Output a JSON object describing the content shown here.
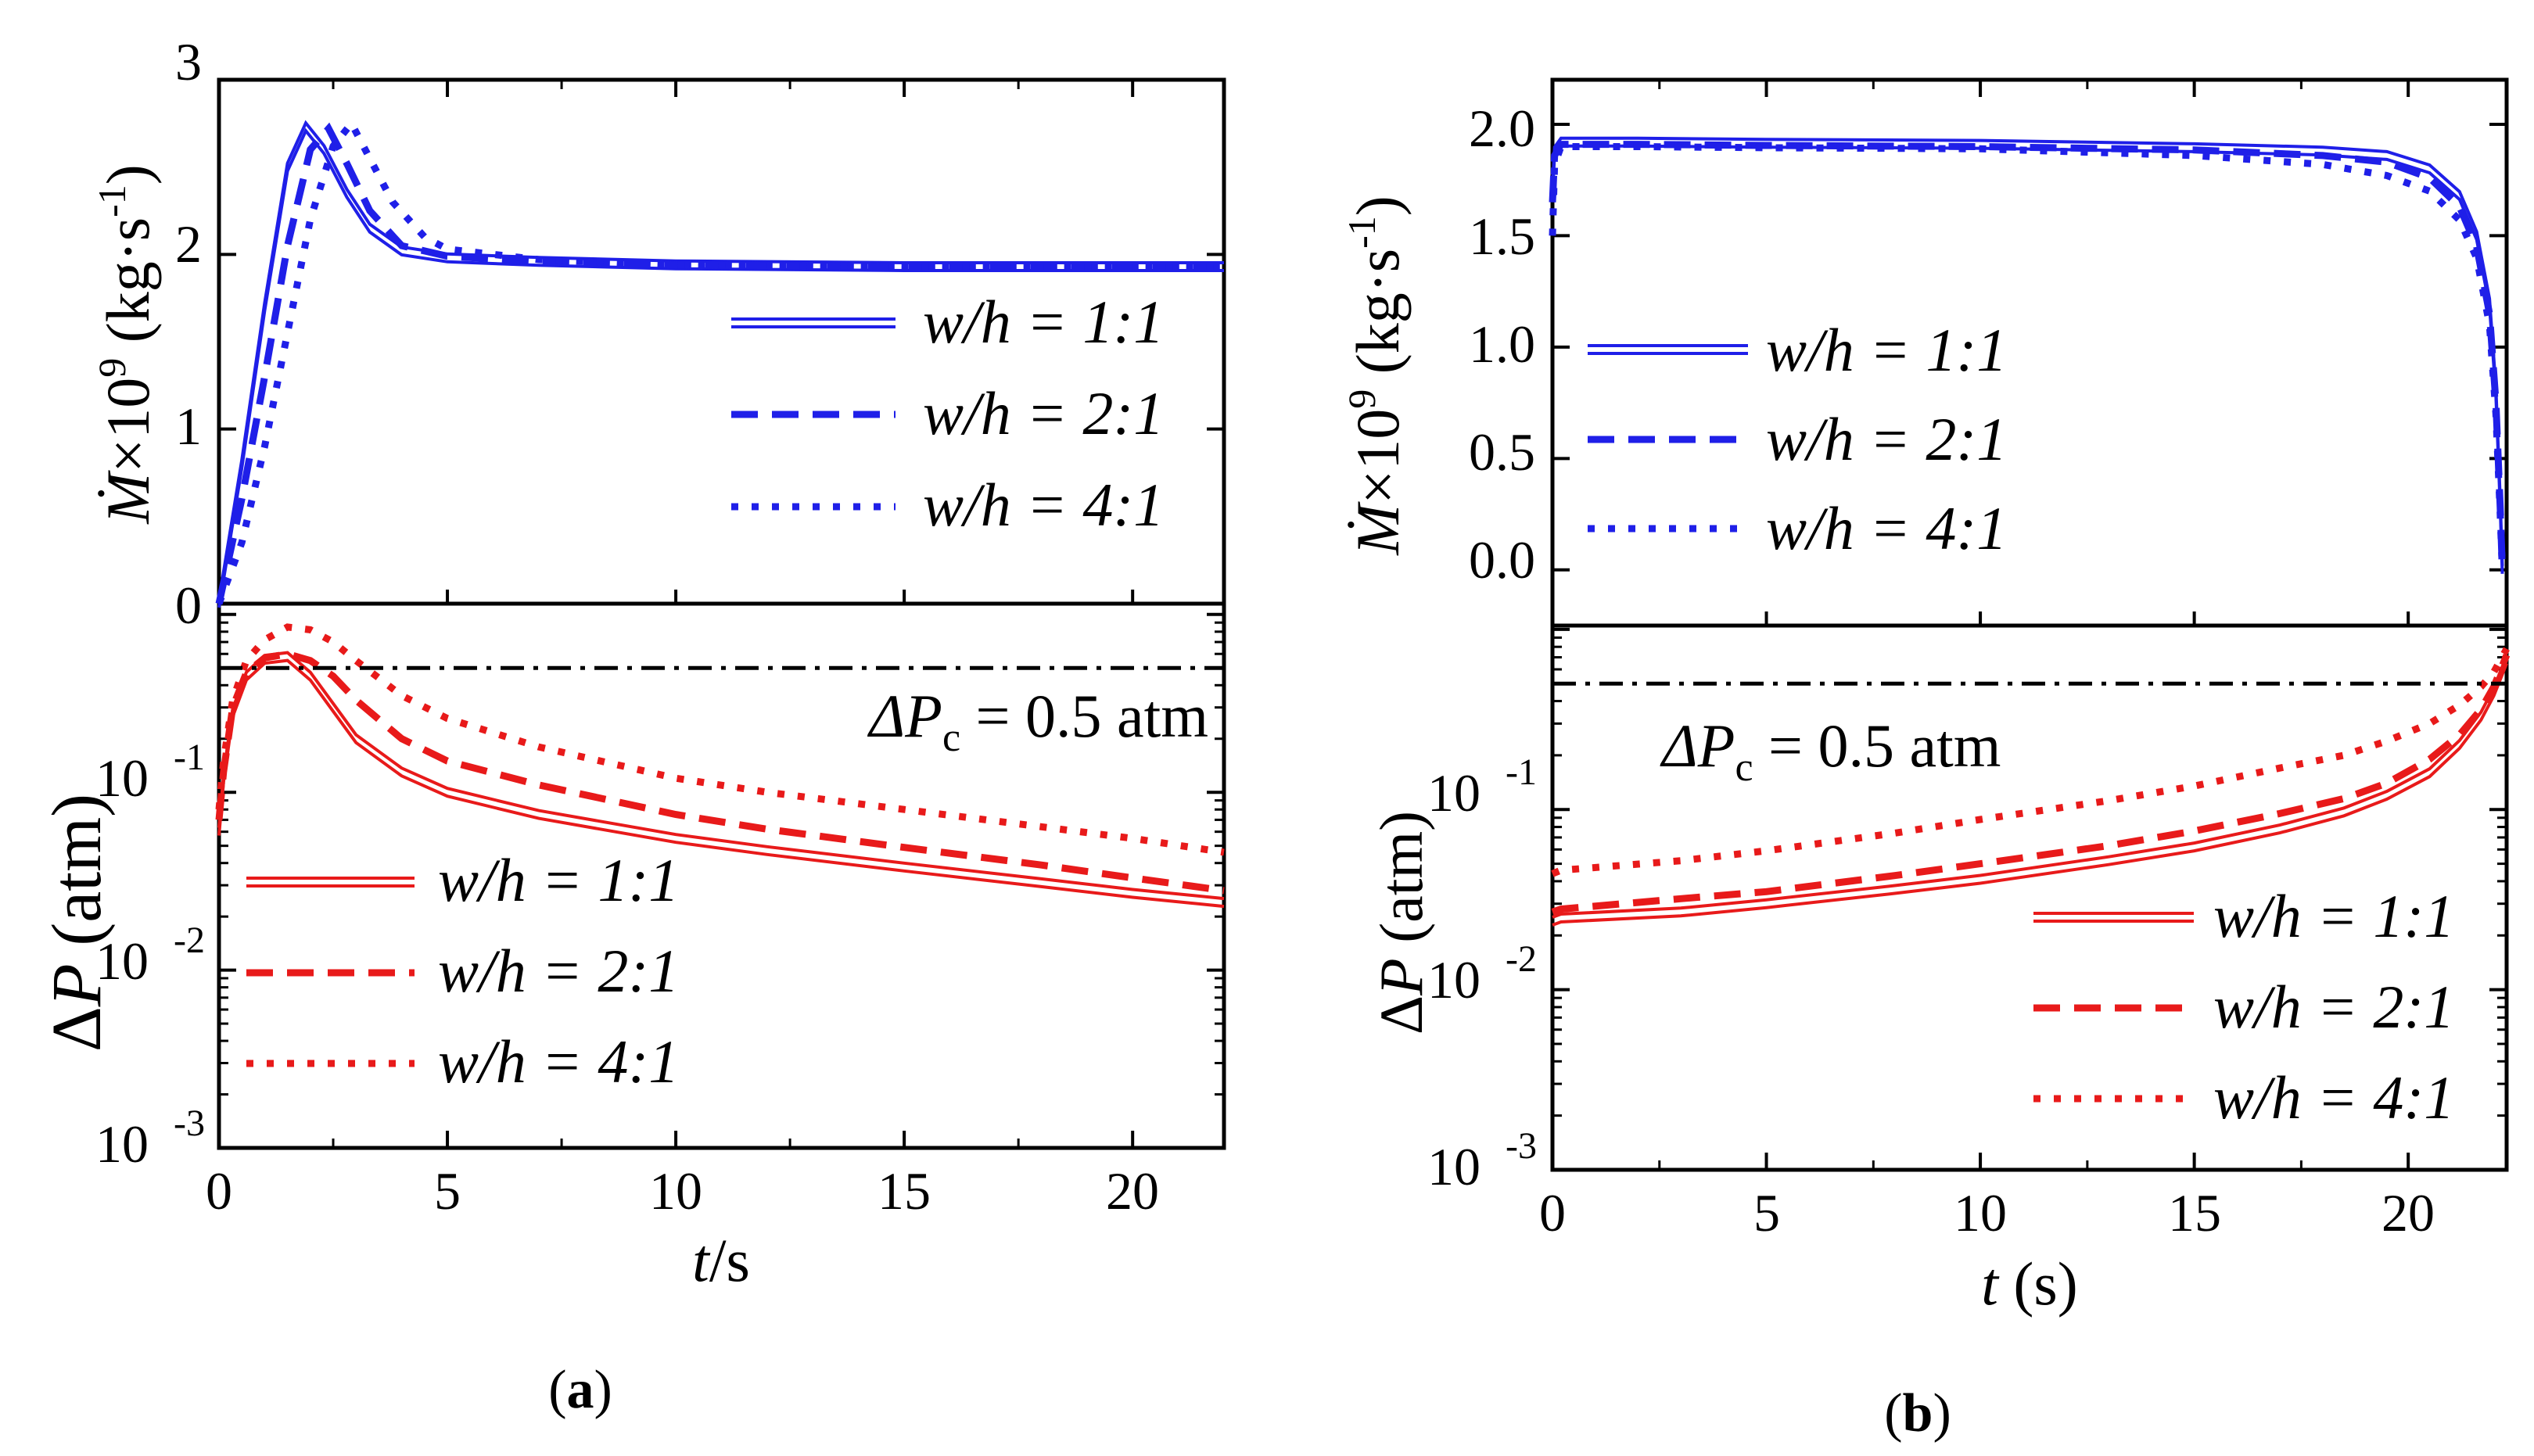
{
  "colors": {
    "blue": "#1f1fe8",
    "red": "#e81a1a",
    "threshold": "#000000",
    "axis": "#000000"
  },
  "chart_data": [
    {
      "id": "a",
      "caption": "(a)",
      "caption_letter": "a",
      "type": "line",
      "xlim": [
        0,
        22
      ],
      "x_ticks": [
        "0",
        "5",
        "10",
        "15",
        "20"
      ],
      "x_tick_values": [
        0,
        5,
        10,
        15,
        20
      ],
      "xlabel": "t/s",
      "xlabel_parts": {
        "var": "t",
        "rest": "/s"
      },
      "top": {
        "ylabel": "Ṁ×10⁹ (kg·s⁻¹)",
        "ylabel_parts": {
          "var": "Ṁ",
          "times": "×10",
          "exp": "9",
          "unit": " (kg·s",
          "unit_exp": "-1",
          "close": ")"
        },
        "ylim": [
          0,
          3
        ],
        "y_ticks": [
          "0",
          "1",
          "2",
          "3"
        ],
        "y_tick_values": [
          0,
          1,
          2,
          3
        ],
        "legend": [
          "w/h = 1:1",
          "w/h = 2:1",
          "w/h = 4:1"
        ],
        "series": [
          {
            "name": "w/h = 1:1",
            "style": "double",
            "x": [
              0,
              0.5,
              1,
              1.5,
              1.9,
              2.3,
              2.8,
              3.3,
              4,
              5,
              7,
              10,
              15,
              22
            ],
            "y": [
              0,
              0.8,
              1.7,
              2.5,
              2.73,
              2.6,
              2.35,
              2.15,
              2.02,
              1.98,
              1.96,
              1.94,
              1.93,
              1.93
            ]
          },
          {
            "name": "w/h = 2:1",
            "style": "dashed",
            "x": [
              0,
              0.5,
              1,
              1.5,
              2,
              2.4,
              2.8,
              3.3,
              4,
              5,
              7,
              10,
              15,
              22
            ],
            "y": [
              0,
              0.6,
              1.3,
              2.05,
              2.6,
              2.72,
              2.52,
              2.25,
              2.05,
              1.99,
              1.96,
              1.94,
              1.93,
              1.93
            ]
          },
          {
            "name": "w/h = 4:1",
            "style": "dotted",
            "x": [
              0,
              0.5,
              1,
              1.5,
              2,
              2.5,
              2.9,
              3.3,
              3.8,
              4.5,
              5,
              7,
              10,
              15,
              22
            ],
            "y": [
              0,
              0.35,
              0.9,
              1.55,
              2.2,
              2.62,
              2.75,
              2.55,
              2.3,
              2.1,
              2.03,
              1.97,
              1.94,
              1.93,
              1.93
            ]
          }
        ]
      },
      "bottom": {
        "ylabel": "ΔP (atm)",
        "ylabel_parts": {
          "delta": "Δ",
          "var": "P",
          "unit": " (atm)"
        },
        "yscale": "log",
        "ylim": [
          0.001,
          1.15
        ],
        "y_ticks": [
          "10",
          "10",
          "10"
        ],
        "y_tick_exps": [
          "-3",
          "-2",
          "-1"
        ],
        "y_tick_values": [
          0.001,
          0.01,
          0.1
        ],
        "threshold": {
          "value": 0.5,
          "label": "ΔPc = 0.5 atm",
          "label_parts": {
            "delta": "Δ",
            "var": "P",
            "sub": "c",
            "rest": " = 0.5 atm"
          }
        },
        "legend": [
          "w/h = 1:1",
          "w/h = 2:1",
          "w/h = 4:1"
        ],
        "series": [
          {
            "name": "w/h = 1:1",
            "style": "double",
            "x": [
              0,
              0.1,
              0.3,
              0.6,
              1,
              1.5,
              2,
              2.5,
              3,
              4,
              5,
              7,
              10,
              12,
              15,
              18,
              20,
              22
            ],
            "y": [
              0.06,
              0.12,
              0.28,
              0.45,
              0.56,
              0.58,
              0.45,
              0.3,
              0.2,
              0.13,
              0.1,
              0.075,
              0.055,
              0.047,
              0.038,
              0.031,
              0.027,
              0.024
            ]
          },
          {
            "name": "w/h = 2:1",
            "style": "dashed",
            "x": [
              0,
              0.1,
              0.3,
              0.6,
              1,
              1.5,
              2,
              2.5,
              3,
              4,
              5,
              7,
              10,
              12,
              15,
              18,
              20,
              22
            ],
            "y": [
              0.07,
              0.13,
              0.3,
              0.47,
              0.57,
              0.6,
              0.55,
              0.45,
              0.33,
              0.2,
              0.15,
              0.11,
              0.075,
              0.062,
              0.049,
              0.039,
              0.033,
              0.028
            ]
          },
          {
            "name": "w/h = 4:1",
            "style": "dotted",
            "x": [
              0,
              0.1,
              0.3,
              0.6,
              1,
              1.5,
              2,
              2.5,
              3,
              4,
              5,
              7,
              10,
              12,
              15,
              18,
              20,
              22
            ],
            "y": [
              0.08,
              0.15,
              0.33,
              0.55,
              0.72,
              0.85,
              0.82,
              0.7,
              0.55,
              0.35,
              0.26,
              0.18,
              0.12,
              0.1,
              0.08,
              0.064,
              0.055,
              0.046
            ]
          }
        ]
      }
    },
    {
      "id": "b",
      "caption": "(b)",
      "caption_letter": "b",
      "type": "line",
      "xlim": [
        0,
        22.3
      ],
      "x_ticks": [
        "0",
        "5",
        "10",
        "15",
        "20"
      ],
      "x_tick_values": [
        0,
        5,
        10,
        15,
        20
      ],
      "xlabel": "t (s)",
      "xlabel_parts": {
        "var": "t",
        "rest": " (s)"
      },
      "top": {
        "ylabel": "Ṁ×10⁹ (kg·s⁻¹)",
        "ylabel_parts": {
          "var": "Ṁ",
          "times": "×10",
          "exp": "9",
          "unit": " (kg·s",
          "unit_exp": "-1",
          "close": ")"
        },
        "ylim": [
          -0.25,
          2.2
        ],
        "y_ticks": [
          "0.0",
          "0.5",
          "1.0",
          "1.5",
          "2.0"
        ],
        "y_tick_values": [
          0,
          0.5,
          1,
          1.5,
          2
        ],
        "legend": [
          "w/h = 1:1",
          "w/h = 2:1",
          "w/h = 4:1"
        ],
        "series": [
          {
            "name": "w/h = 1:1",
            "style": "double",
            "x": [
              0,
              0.05,
              0.2,
              2,
              5,
              10,
              15,
              18,
              19.5,
              20.5,
              21.2,
              21.6,
              21.9,
              22.05,
              22.15,
              22.2
            ],
            "y": [
              1.7,
              1.88,
              1.92,
              1.92,
              1.915,
              1.91,
              1.895,
              1.88,
              1.86,
              1.8,
              1.68,
              1.5,
              1.2,
              0.8,
              0.3,
              0.0
            ]
          },
          {
            "name": "w/h = 2:1",
            "style": "dashed",
            "x": [
              0,
              0.05,
              0.2,
              2,
              5,
              10,
              15,
              18,
              19.5,
              20.5,
              21.2,
              21.6,
              21.9,
              22.05,
              22.15,
              22.2
            ],
            "y": [
              1.65,
              1.86,
              1.91,
              1.91,
              1.905,
              1.9,
              1.885,
              1.86,
              1.83,
              1.76,
              1.63,
              1.45,
              1.15,
              0.75,
              0.28,
              0.0
            ]
          },
          {
            "name": "w/h = 4:1",
            "style": "dotted",
            "x": [
              0,
              0.05,
              0.2,
              2,
              5,
              10,
              15,
              18,
              19.5,
              20.5,
              21.2,
              21.6,
              21.9,
              22.05,
              22.15,
              22.2
            ],
            "y": [
              1.5,
              1.82,
              1.9,
              1.9,
              1.895,
              1.89,
              1.86,
              1.82,
              1.77,
              1.7,
              1.57,
              1.4,
              1.1,
              0.7,
              0.25,
              0.0
            ]
          }
        ]
      },
      "bottom": {
        "ylabel": "ΔP (atm)",
        "ylabel_parts": {
          "delta": "Δ",
          "var": "P",
          "unit": " (atm)"
        },
        "yscale": "log",
        "ylim": [
          0.001,
          1.05
        ],
        "y_ticks": [
          "10",
          "10",
          "10"
        ],
        "y_tick_exps": [
          "-3",
          "-2",
          "-1"
        ],
        "y_tick_values": [
          0.001,
          0.01,
          0.1
        ],
        "threshold": {
          "value": 0.5,
          "label": "ΔPc = 0.5 atm",
          "label_parts": {
            "delta": "Δ",
            "var": "P",
            "sub": "c",
            "rest": " = 0.5 atm"
          }
        },
        "legend": [
          "w/h = 1:1",
          "w/h = 2:1",
          "w/h = 4:1"
        ],
        "series": [
          {
            "name": "w/h = 1:1",
            "style": "double",
            "x": [
              0,
              0.2,
              3,
              5,
              8,
              10,
              13,
              15,
              17,
              18.5,
              19.5,
              20.5,
              21.2,
              21.7,
              22.0,
              22.3
            ],
            "y": [
              0.024,
              0.025,
              0.027,
              0.03,
              0.036,
              0.041,
              0.052,
              0.062,
              0.078,
              0.097,
              0.12,
              0.16,
              0.23,
              0.33,
              0.45,
              0.68
            ]
          },
          {
            "name": "w/h = 2:1",
            "style": "dashed",
            "x": [
              0,
              0.2,
              3,
              5,
              8,
              10,
              13,
              15,
              17,
              18.5,
              19.5,
              20.5,
              21.2,
              21.7,
              22.0,
              22.3
            ],
            "y": [
              0.027,
              0.028,
              0.032,
              0.035,
              0.043,
              0.05,
              0.063,
              0.076,
              0.095,
              0.115,
              0.14,
              0.19,
              0.26,
              0.36,
              0.48,
              0.72
            ]
          },
          {
            "name": "w/h = 4:1",
            "style": "dotted",
            "x": [
              0,
              0.2,
              3,
              5,
              8,
              10,
              13,
              15,
              17,
              18.5,
              19.5,
              20.5,
              21.2,
              21.7,
              22.0,
              22.3
            ],
            "y": [
              0.044,
              0.046,
              0.052,
              0.059,
              0.074,
              0.088,
              0.112,
              0.135,
              0.17,
              0.2,
              0.24,
              0.3,
              0.38,
              0.48,
              0.58,
              0.78
            ]
          }
        ]
      }
    }
  ]
}
